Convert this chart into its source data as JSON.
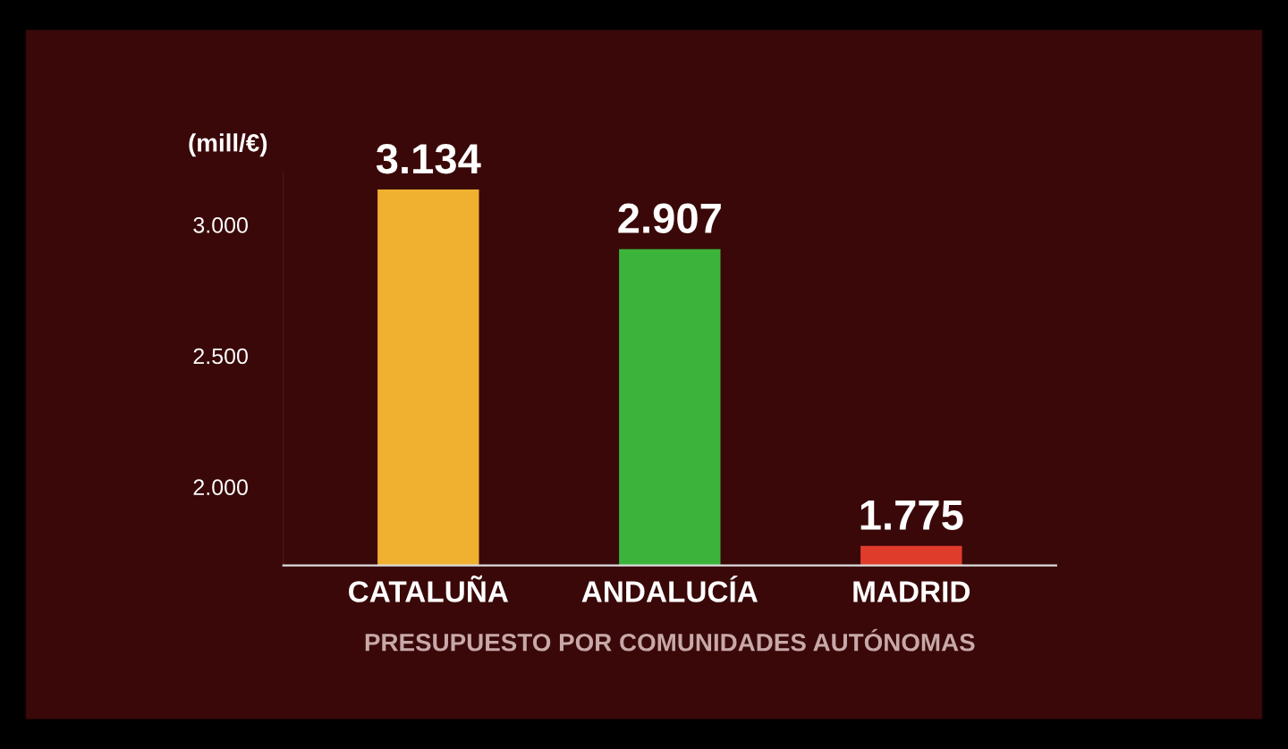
{
  "chart_data": {
    "type": "bar",
    "ylabel": "(mill/€)",
    "xlabel": "PRESUPUESTO POR COMUNIDADES AUTÓNOMAS",
    "categories": [
      "CATALUÑA",
      "ANDALUCÍA",
      "MADRID"
    ],
    "values": [
      3134,
      2907,
      1775
    ],
    "colors": [
      "#f0b030",
      "#3cb43c",
      "#e03c2c"
    ],
    "value_labels": [
      "3.134",
      "2.907",
      "1.775"
    ],
    "ylim": [
      1700,
      3200
    ],
    "yticks": [
      {
        "value": 2000,
        "label": "2.000"
      },
      {
        "value": 2500,
        "label": "2.500"
      },
      {
        "value": 3000,
        "label": "3.000"
      }
    ],
    "grid": false,
    "legend": false
  }
}
